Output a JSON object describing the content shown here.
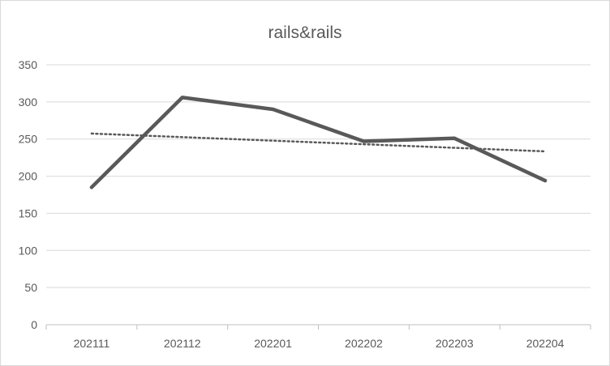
{
  "chart_data": {
    "type": "line",
    "title": "rails&rails",
    "xlabel": "",
    "ylabel": "",
    "categories": [
      "202111",
      "202112",
      "202201",
      "202202",
      "202203",
      "202204"
    ],
    "series": [
      {
        "values": [
          185,
          306,
          290,
          247,
          251,
          194
        ],
        "color": "#595959",
        "style": "solid"
      }
    ],
    "trendline": {
      "type": "linear",
      "values": [
        257.4,
        252.6,
        247.8,
        243.0,
        238.2,
        233.4
      ],
      "color": "#595959",
      "style": "dotted"
    },
    "ylim": [
      0,
      350
    ],
    "yticks": [
      0,
      50,
      100,
      150,
      200,
      250,
      300,
      350
    ],
    "grid": true,
    "legend": "none"
  }
}
